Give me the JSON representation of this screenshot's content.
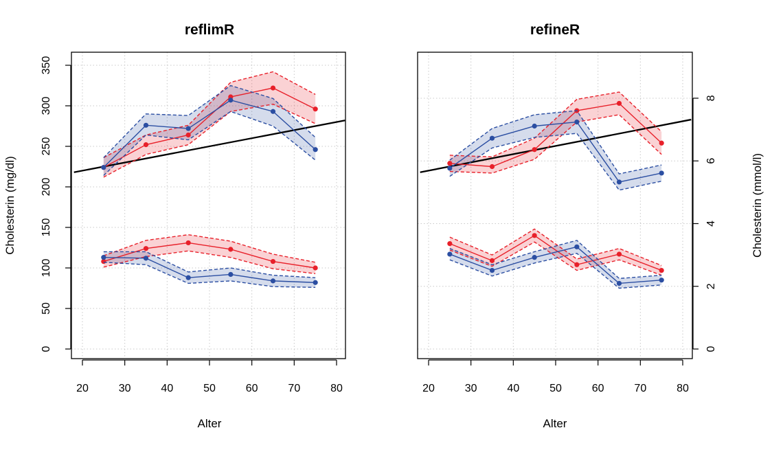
{
  "chart_data": [
    {
      "type": "line",
      "title": "reflimR",
      "xlabel": "Alter",
      "ylabel": "Cholesterin (mg/dl)",
      "xlim": [
        20,
        80
      ],
      "ylim": [
        0,
        350
      ],
      "xticks": [
        20,
        30,
        40,
        50,
        60,
        70,
        80
      ],
      "yticks": [
        0,
        50,
        100,
        150,
        200,
        250,
        300,
        350
      ],
      "grid": true,
      "x": [
        25,
        35,
        45,
        55,
        65,
        75
      ],
      "series": [
        {
          "color": "#e8202a",
          "values": [
            224,
            252,
            264,
            311,
            322,
            296
          ],
          "lower": [
            212,
            240,
            252,
            293,
            302,
            278
          ],
          "upper": [
            236,
            264,
            276,
            329,
            342,
            314
          ]
        },
        {
          "color": "#2b4ea2",
          "values": [
            224,
            276,
            272,
            307,
            293,
            246
          ],
          "lower": [
            214,
            264,
            258,
            293,
            275,
            233
          ],
          "upper": [
            236,
            290,
            288,
            325,
            309,
            261
          ]
        },
        {
          "color": "#e8202a",
          "values": [
            108,
            124,
            131,
            123,
            108,
            100
          ],
          "lower": [
            101,
            114,
            121,
            113,
            99,
            93
          ],
          "upper": [
            115,
            134,
            141,
            133,
            117,
            107
          ]
        },
        {
          "color": "#2b4ea2",
          "values": [
            113,
            112,
            88,
            92,
            84,
            82
          ],
          "lower": [
            107,
            104,
            81,
            84,
            77,
            76
          ],
          "upper": [
            120,
            120,
            95,
            100,
            91,
            88
          ]
        }
      ],
      "reference_line": {
        "x": [
          18,
          82
        ],
        "y": [
          218,
          282
        ],
        "color": "#000000"
      }
    },
    {
      "type": "line",
      "title": "refineR",
      "xlabel": "Alter",
      "ylabel_right": "Cholesterin (mmol/l)",
      "xlim": [
        20,
        80
      ],
      "ylim": [
        0,
        350
      ],
      "xticks": [
        20,
        30,
        40,
        50,
        60,
        70,
        80
      ],
      "yticks_right_mmol": [
        0,
        2,
        4,
        6,
        8
      ],
      "grid": true,
      "x": [
        25,
        35,
        45,
        55,
        65,
        75
      ],
      "series": [
        {
          "color": "#e8202a",
          "values": [
            229,
            225,
            246,
            294,
            303,
            254
          ],
          "lower": [
            219,
            217,
            234,
            280,
            289,
            240
          ],
          "upper": [
            239,
            237,
            260,
            308,
            317,
            268
          ]
        },
        {
          "color": "#2b4ea2",
          "values": [
            223,
            260,
            275,
            280,
            206,
            217
          ],
          "lower": [
            213,
            248,
            261,
            266,
            196,
            207
          ],
          "upper": [
            233,
            272,
            289,
            294,
            216,
            227
          ]
        },
        {
          "color": "#e8202a",
          "values": [
            130,
            109,
            140,
            104,
            117,
            97
          ],
          "lower": [
            122,
            102,
            132,
            97,
            110,
            91
          ],
          "upper": [
            138,
            116,
            148,
            111,
            124,
            103
          ]
        },
        {
          "color": "#2b4ea2",
          "values": [
            117,
            97,
            113,
            126,
            81,
            85
          ],
          "lower": [
            110,
            90,
            106,
            118,
            75,
            79
          ],
          "upper": [
            124,
            104,
            120,
            134,
            87,
            91
          ]
        }
      ],
      "reference_line": {
        "x": [
          18,
          82
        ],
        "y": [
          218,
          283
        ],
        "color": "#000000"
      }
    }
  ]
}
